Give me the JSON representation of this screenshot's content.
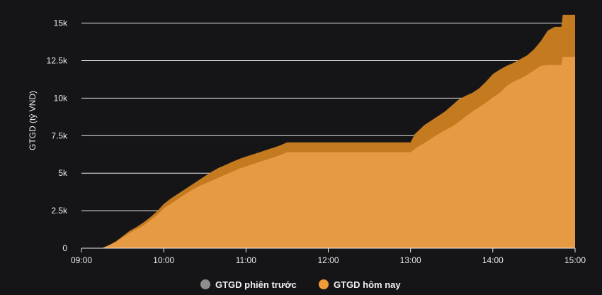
{
  "chart_data": {
    "type": "area",
    "title": "",
    "xlabel": "",
    "ylabel": "GTGD (tỷ VND)",
    "x_ticks": [
      "09:00",
      "10:00",
      "11:00",
      "12:00",
      "13:00",
      "14:00",
      "15:00"
    ],
    "y_ticks": [
      "0",
      "2.5k",
      "5k",
      "7.5k",
      "10k",
      "12.5k",
      "15k"
    ],
    "ylim": [
      0,
      15500
    ],
    "grid": "horizontal",
    "legend_position": "bottom",
    "series": [
      {
        "name": "GTGD phiên trước",
        "color": "#c47a1e",
        "points": [
          [
            "09:00",
            0
          ],
          [
            "09:15",
            0
          ],
          [
            "09:20",
            200
          ],
          [
            "09:25",
            450
          ],
          [
            "09:30",
            800
          ],
          [
            "09:35",
            1150
          ],
          [
            "09:40",
            1400
          ],
          [
            "09:45",
            1700
          ],
          [
            "09:50",
            2050
          ],
          [
            "09:55",
            2450
          ],
          [
            "10:00",
            2950
          ],
          [
            "10:05",
            3300
          ],
          [
            "10:10",
            3600
          ],
          [
            "10:15",
            3900
          ],
          [
            "10:20",
            4200
          ],
          [
            "10:25",
            4500
          ],
          [
            "10:30",
            4800
          ],
          [
            "10:35",
            5100
          ],
          [
            "10:40",
            5350
          ],
          [
            "10:45",
            5550
          ],
          [
            "10:50",
            5750
          ],
          [
            "10:55",
            5950
          ],
          [
            "11:00",
            6100
          ],
          [
            "11:05",
            6250
          ],
          [
            "11:10",
            6400
          ],
          [
            "11:15",
            6550
          ],
          [
            "11:20",
            6700
          ],
          [
            "11:25",
            6850
          ],
          [
            "11:30",
            7050
          ],
          [
            "12:00",
            7050
          ],
          [
            "13:00",
            7050
          ],
          [
            "13:03",
            7600
          ],
          [
            "13:10",
            8200
          ],
          [
            "13:15",
            8500
          ],
          [
            "13:20",
            8800
          ],
          [
            "13:25",
            9100
          ],
          [
            "13:30",
            9500
          ],
          [
            "13:35",
            9900
          ],
          [
            "13:40",
            10150
          ],
          [
            "13:45",
            10350
          ],
          [
            "13:50",
            10650
          ],
          [
            "13:55",
            11100
          ],
          [
            "14:00",
            11600
          ],
          [
            "14:05",
            11900
          ],
          [
            "14:10",
            12150
          ],
          [
            "14:15",
            12350
          ],
          [
            "14:20",
            12600
          ],
          [
            "14:25",
            12850
          ],
          [
            "14:30",
            13250
          ],
          [
            "14:35",
            13800
          ],
          [
            "14:40",
            14500
          ],
          [
            "14:45",
            14750
          ],
          [
            "14:50",
            14750
          ],
          [
            "14:51",
            15550
          ],
          [
            "15:00",
            15550
          ]
        ]
      },
      {
        "name": "GTGD hôm nay",
        "color": "#e79a44",
        "points": [
          [
            "09:00",
            0
          ],
          [
            "09:15",
            0
          ],
          [
            "09:20",
            200
          ],
          [
            "09:25",
            400
          ],
          [
            "09:30",
            700
          ],
          [
            "09:35",
            1000
          ],
          [
            "09:40",
            1250
          ],
          [
            "09:45",
            1500
          ],
          [
            "09:50",
            1850
          ],
          [
            "09:55",
            2200
          ],
          [
            "10:00",
            2650
          ],
          [
            "10:05",
            2950
          ],
          [
            "10:10",
            3250
          ],
          [
            "10:15",
            3550
          ],
          [
            "10:20",
            3850
          ],
          [
            "10:25",
            4100
          ],
          [
            "10:30",
            4300
          ],
          [
            "10:35",
            4500
          ],
          [
            "10:40",
            4700
          ],
          [
            "10:45",
            4900
          ],
          [
            "10:50",
            5100
          ],
          [
            "10:55",
            5300
          ],
          [
            "11:00",
            5450
          ],
          [
            "11:05",
            5600
          ],
          [
            "11:10",
            5750
          ],
          [
            "11:15",
            5900
          ],
          [
            "11:20",
            6050
          ],
          [
            "11:25",
            6200
          ],
          [
            "11:30",
            6400
          ],
          [
            "12:00",
            6400
          ],
          [
            "13:00",
            6400
          ],
          [
            "13:05",
            6750
          ],
          [
            "13:10",
            7000
          ],
          [
            "13:15",
            7300
          ],
          [
            "13:20",
            7600
          ],
          [
            "13:25",
            7850
          ],
          [
            "13:30",
            8100
          ],
          [
            "13:35",
            8400
          ],
          [
            "13:40",
            8750
          ],
          [
            "13:45",
            9100
          ],
          [
            "13:50",
            9400
          ],
          [
            "13:55",
            9700
          ],
          [
            "14:00",
            10050
          ],
          [
            "14:05",
            10350
          ],
          [
            "14:10",
            10800
          ],
          [
            "14:15",
            11100
          ],
          [
            "14:20",
            11300
          ],
          [
            "14:25",
            11550
          ],
          [
            "14:30",
            11850
          ],
          [
            "14:35",
            12150
          ],
          [
            "14:40",
            12200
          ],
          [
            "14:45",
            12200
          ],
          [
            "14:50",
            12200
          ],
          [
            "14:51",
            12750
          ],
          [
            "15:00",
            12750
          ]
        ]
      }
    ]
  }
}
